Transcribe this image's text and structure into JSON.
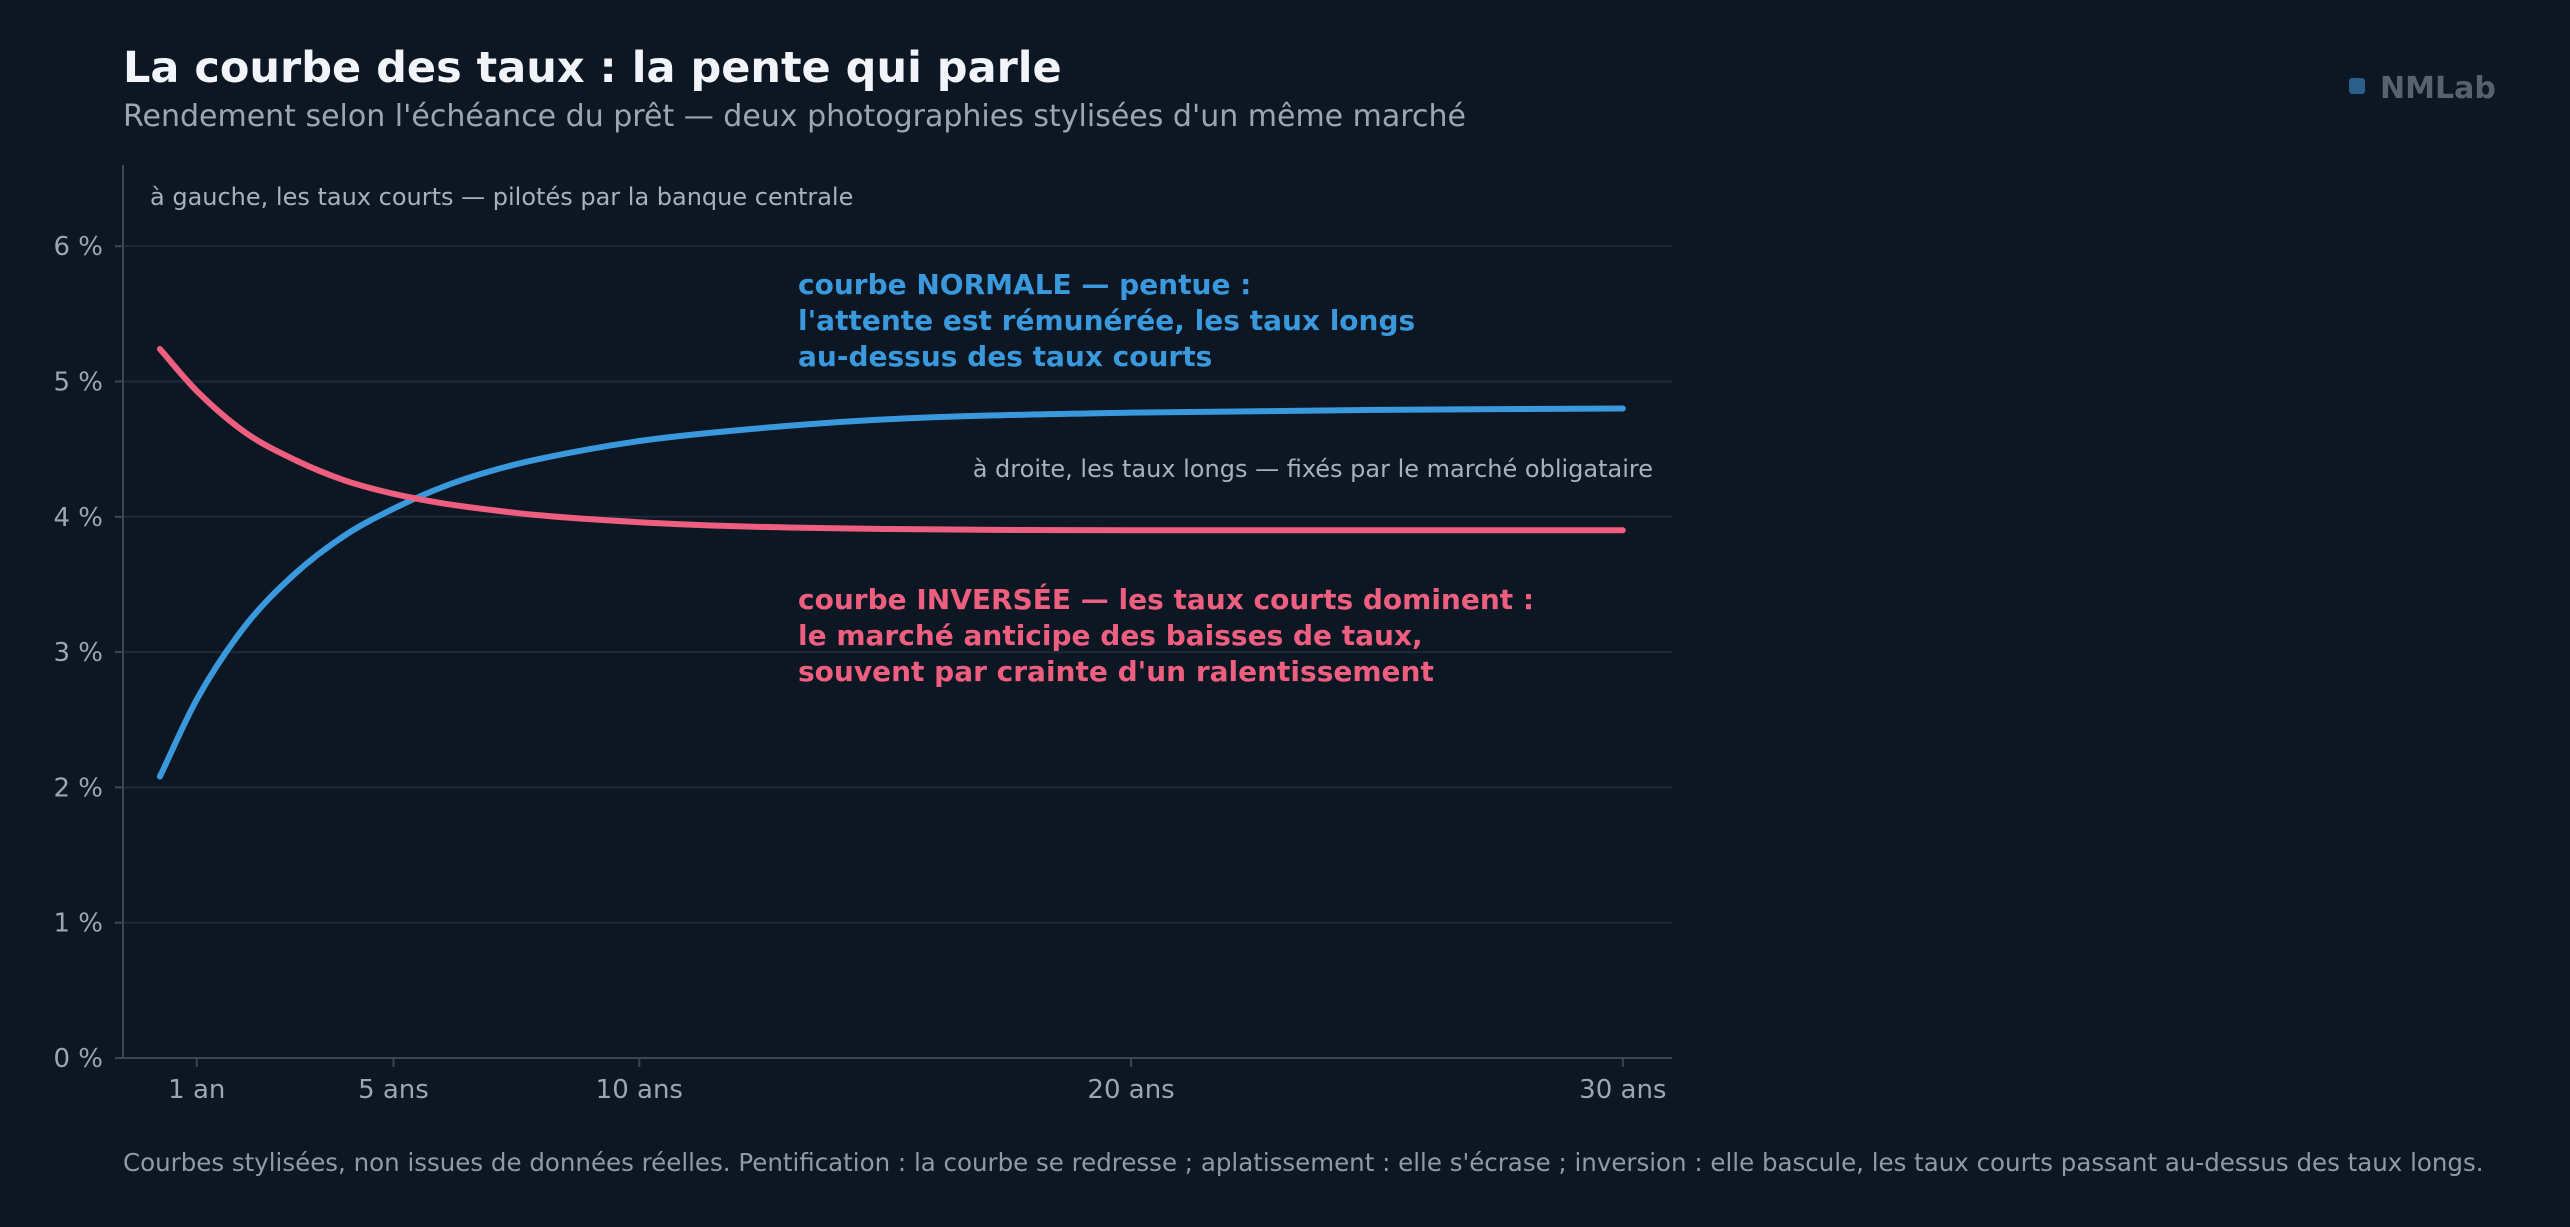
{
  "header": {
    "title": "La courbe des taux : la pente qui parle",
    "subtitle": "Rendement selon l'échéance du prêt — deux photographies stylisées d'un même marché"
  },
  "brand": {
    "label": "NMLab",
    "icon": "square-logo-icon",
    "color": "#2b5f8a"
  },
  "notes": {
    "left": "à gauche, les taux courts — pilotés par la banque centrale",
    "right": "à droite, les taux longs — fixés par le marché obligataire"
  },
  "annotations": {
    "normal": [
      "courbe NORMALE — pentue :",
      "l'attente est rémunérée, les taux longs",
      "au-dessus des taux courts"
    ],
    "inverted": [
      "courbe INVERSÉE — les taux courts dominent :",
      "le marché anticipe des baisses de taux,",
      "souvent par crainte d'un ralentissement"
    ]
  },
  "footer": "Courbes stylisées, non issues de données réelles. Pentification : la courbe se redresse ; aplatissement : elle s'écrase ; inversion : elle bascule, les taux courts passant au-dessus des taux longs.",
  "colors": {
    "background": "#0d1724",
    "normal": "#3a98dd",
    "inverted": "#ee5f7f"
  },
  "chart_data": {
    "type": "line",
    "xlim": [
      -0.5,
      31
    ],
    "ylim": [
      0,
      6.6
    ],
    "x_ticks": [
      {
        "value": 1,
        "label": "1 an"
      },
      {
        "value": 5,
        "label": "5 ans"
      },
      {
        "value": 10,
        "label": "10 ans"
      },
      {
        "value": 20,
        "label": "20 ans"
      },
      {
        "value": 30,
        "label": "30 ans"
      }
    ],
    "y_ticks": [
      {
        "value": 0,
        "label": "0 %"
      },
      {
        "value": 1,
        "label": "1 %"
      },
      {
        "value": 2,
        "label": "2 %"
      },
      {
        "value": 3,
        "label": "3 %"
      },
      {
        "value": 4,
        "label": "4 %"
      },
      {
        "value": 5,
        "label": "5 %"
      },
      {
        "value": 6,
        "label": "6 %"
      }
    ],
    "grid": "horizontal",
    "x": [
      0.25,
      1,
      2,
      3,
      4,
      5,
      6,
      7,
      8,
      10,
      12,
      15,
      20,
      25,
      30
    ],
    "series": [
      {
        "key": "normal",
        "color": "#3a98dd",
        "values": [
          2.08,
          2.65,
          3.2,
          3.58,
          3.86,
          4.06,
          4.22,
          4.34,
          4.43,
          4.56,
          4.64,
          4.72,
          4.77,
          4.79,
          4.8
        ]
      },
      {
        "key": "inverted",
        "color": "#ee5f7f",
        "values": [
          5.24,
          4.93,
          4.62,
          4.42,
          4.27,
          4.17,
          4.1,
          4.05,
          4.01,
          3.96,
          3.93,
          3.91,
          3.9,
          3.9,
          3.9
        ]
      }
    ]
  }
}
